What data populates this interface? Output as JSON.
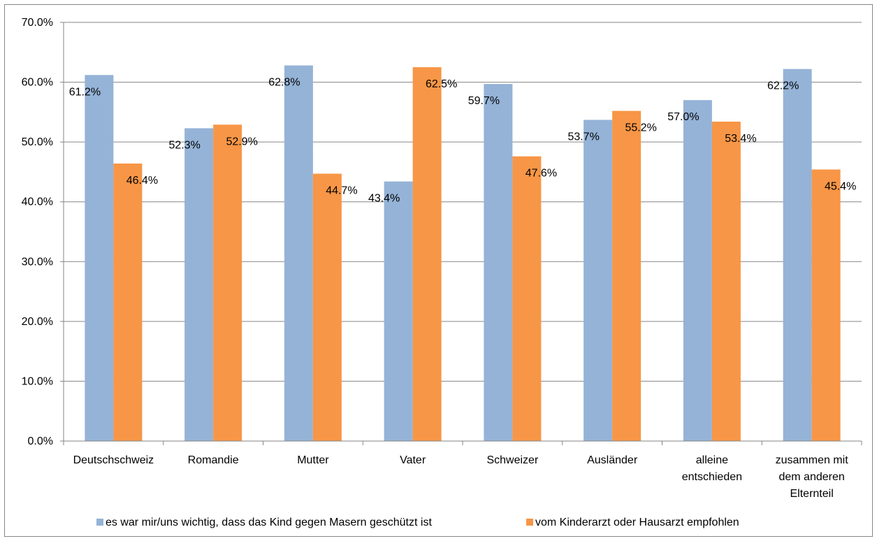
{
  "chart_data": {
    "type": "bar",
    "categories": [
      [
        "Deutschschweiz"
      ],
      [
        "Romandie"
      ],
      [
        "Mutter"
      ],
      [
        "Vater"
      ],
      [
        "Schweizer"
      ],
      [
        "Ausländer"
      ],
      [
        "alleine",
        "entschieden"
      ],
      [
        "zusammen mit",
        "dem anderen",
        "Elternteil"
      ]
    ],
    "series": [
      {
        "name": "es war mir/uns wichtig, dass das Kind gegen Masern geschützt ist",
        "color": "#95B3D7",
        "values": [
          61.2,
          52.3,
          62.8,
          43.4,
          59.7,
          53.7,
          57.0,
          62.2
        ],
        "labels": [
          "61.2%",
          "52.3%",
          "62.8%",
          "43.4%",
          "59.7%",
          "53.7%",
          "57.0%",
          "62.2%"
        ]
      },
      {
        "name": "vom Kinderarzt oder Hausarzt empfohlen",
        "color": "#F79646",
        "values": [
          46.4,
          52.9,
          44.7,
          62.5,
          47.6,
          55.2,
          53.4,
          45.4
        ],
        "labels": [
          "46.4%",
          "52.9%",
          "44.7%",
          "62.5%",
          "47.6%",
          "55.2%",
          "53.4%",
          "45.4%"
        ]
      }
    ],
    "ylim": [
      0,
      70
    ],
    "yticks": [
      "0.0%",
      "10.0%",
      "20.0%",
      "30.0%",
      "40.0%",
      "50.0%",
      "60.0%",
      "70.0%"
    ],
    "grid": true,
    "legend": "bottom",
    "title": "",
    "xlabel": "",
    "ylabel": ""
  }
}
